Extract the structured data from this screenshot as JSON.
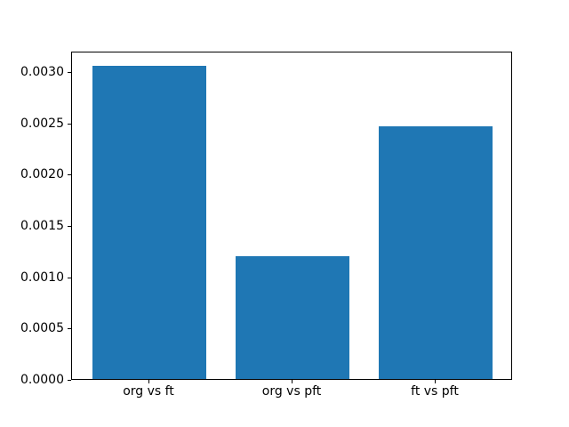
{
  "chart_data": {
    "type": "bar",
    "categories": [
      "org vs ft",
      "org vs pft",
      "ft vs pft"
    ],
    "values": [
      0.00305,
      0.0012,
      0.00246
    ],
    "title": "",
    "xlabel": "",
    "ylabel": "",
    "ylim": [
      0,
      0.0032
    ],
    "yticks": [
      "0.0000",
      "0.0005",
      "0.0010",
      "0.0015",
      "0.0020",
      "0.0025",
      "0.0030"
    ],
    "bar_color": "#1f77b4",
    "bar_width_fraction": 0.8,
    "x_margin_fraction": 0.05,
    "grid": false,
    "legend": null,
    "background_color": "#ffffff",
    "spine_color": "#000000"
  }
}
